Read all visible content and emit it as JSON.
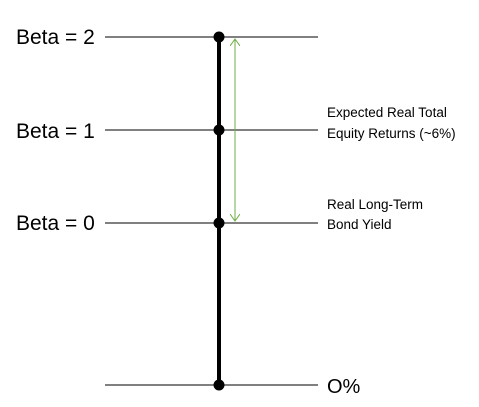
{
  "levels": [
    {
      "label": "Beta = 2"
    },
    {
      "label": "Beta = 1"
    },
    {
      "label": "Beta = 0"
    }
  ],
  "annotations": {
    "equity_line1": "Expected Real Total",
    "equity_line2": "Equity Returns (~6%)",
    "bond_line1": "Real Long-Term",
    "bond_line2": "Bond Yield",
    "zero": "O%"
  },
  "colors": {
    "lines": "#000000",
    "arrow": "#70AD47"
  }
}
